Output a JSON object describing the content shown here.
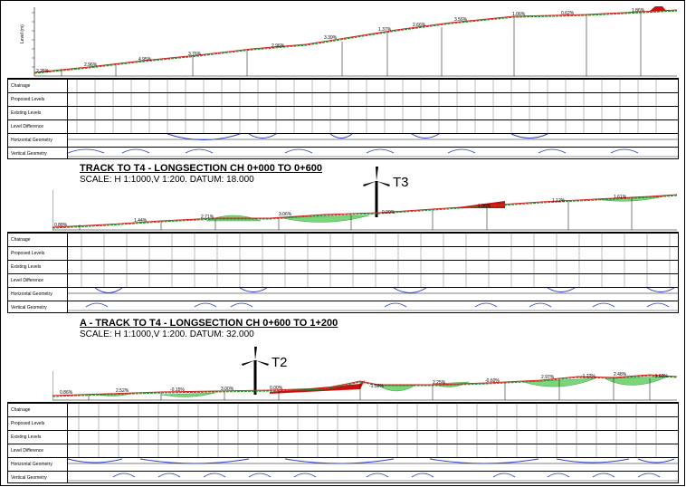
{
  "row_labels": [
    "Chainage",
    "Proposed Levels",
    "Existing Levels",
    "Level Difference",
    "Horizontal Geometry",
    "Vertical Geometry"
  ],
  "axis_label": "Level (m)",
  "sections": [
    {
      "title": "",
      "scale": "",
      "turbine": "",
      "grades": [
        "2.25%",
        "2.96%",
        "4.95%",
        "3.76%",
        "2.96%",
        "3.39%",
        "1.37%",
        "2.66%",
        "3.56%",
        "1.06%",
        "0.62%",
        "1.86%"
      ]
    },
    {
      "title": "TRACK TO T4 - LONGSECTION CH 0+000 TO 0+600",
      "scale": "SCALE: H 1:1000,V 1:200. DATUM: 18.000",
      "turbine": "T3",
      "grades": [
        "0.88%",
        "1.44%",
        "2.71%",
        "3.06%",
        "0.00%",
        "1.00%",
        "1.12%",
        "1.61%"
      ]
    },
    {
      "title": "A - TRACK TO T4 - LONGSECTION CH 0+600 TO 1+200",
      "scale": "SCALE: H 1:1000,V 1:200. DATUM: 32.000",
      "turbine": "T2",
      "grades": [
        "0.86%",
        "2.52%",
        "-0.15%",
        "3.00%",
        "0.00%",
        "-1.30%",
        "2.25%",
        "-0.60%",
        "2.97%",
        "-1.22%",
        "2.48%",
        "-1.62%"
      ]
    }
  ]
}
